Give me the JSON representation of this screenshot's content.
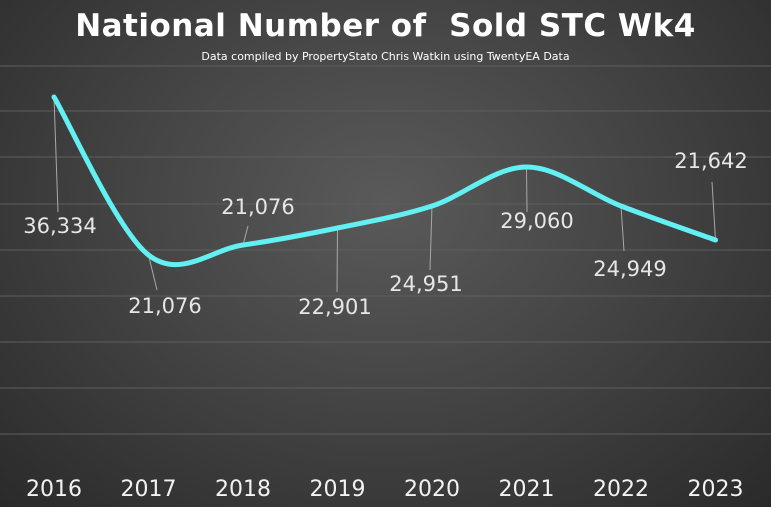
{
  "chart_data": {
    "type": "line",
    "title": "National Number of  Sold STC Wk4",
    "subtitle": "Data compiled by PropertyStato Chris Watkin using TwentyEA Data",
    "categories": [
      "2016",
      "2017",
      "2018",
      "2019",
      "2020",
      "2021",
      "2022",
      "2023"
    ],
    "series": [
      {
        "values": [
          36334,
          21076,
          21076,
          22901,
          24951,
          29060,
          24949,
          21642
        ],
        "labels": [
          "36,334",
          "21,076",
          "21,076",
          "22,901",
          "24,951",
          "29,060",
          "24,949",
          "21,642"
        ]
      }
    ],
    "smooth": true,
    "grid": true,
    "colors": {
      "line": "#62f0f3",
      "background": "#454545"
    }
  }
}
